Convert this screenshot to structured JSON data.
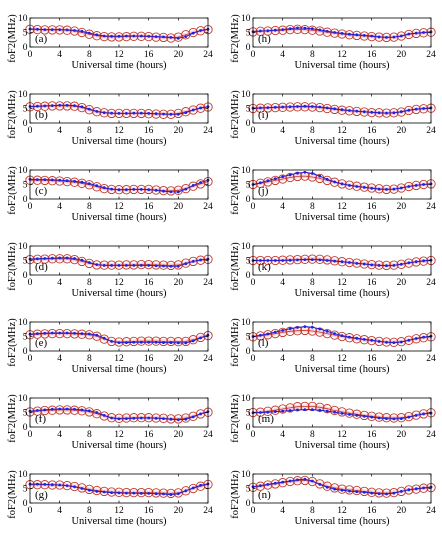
{
  "chart_data": {
    "type": "line",
    "xlabel": "Universal time (hours)",
    "ylabel": "foF2(MHz)",
    "xlim": [
      0,
      24
    ],
    "ylim": [
      0,
      10
    ],
    "xticks": [
      0,
      4,
      8,
      12,
      16,
      20,
      24
    ],
    "yticks": [
      0,
      5,
      10
    ],
    "grid": false,
    "colors": {
      "measured": "#2020dd",
      "model_marker": "#c0392b",
      "model_band": "#f7c7d3"
    },
    "x": [
      0,
      1,
      2,
      3,
      4,
      5,
      6,
      7,
      8,
      9,
      10,
      11,
      12,
      13,
      14,
      15,
      16,
      17,
      18,
      19,
      20,
      21,
      22,
      23,
      24
    ],
    "panels": [
      {
        "label": "(a)",
        "measured": [
          6.2,
          6.1,
          6.0,
          6.0,
          6.0,
          5.9,
          5.7,
          5.4,
          4.8,
          4.2,
          3.8,
          3.7,
          3.7,
          3.8,
          3.8,
          3.8,
          3.7,
          3.6,
          3.5,
          3.3,
          3.0,
          3.6,
          4.8,
          5.7,
          6.1
        ],
        "model": [
          6.1,
          6.0,
          5.9,
          5.9,
          5.9,
          5.8,
          5.5,
          5.0,
          4.4,
          3.9,
          3.6,
          3.5,
          3.5,
          3.6,
          3.7,
          3.7,
          3.6,
          3.4,
          3.3,
          3.1,
          3.4,
          4.2,
          5.0,
          5.6,
          6.0
        ]
      },
      {
        "label": "(b)",
        "measured": [
          5.7,
          5.8,
          5.9,
          6.0,
          6.1,
          6.1,
          6.0,
          5.6,
          4.8,
          4.0,
          3.6,
          3.4,
          3.3,
          3.3,
          3.4,
          3.4,
          3.3,
          3.2,
          3.1,
          3.0,
          3.0,
          3.6,
          4.5,
          5.2,
          5.6
        ],
        "model": [
          5.6,
          5.7,
          5.8,
          5.9,
          5.9,
          5.9,
          5.8,
          5.3,
          4.6,
          3.9,
          3.5,
          3.3,
          3.3,
          3.3,
          3.3,
          3.3,
          3.2,
          3.1,
          3.0,
          3.0,
          3.3,
          3.9,
          4.5,
          5.1,
          5.5
        ]
      },
      {
        "label": "(c)",
        "measured": [
          6.8,
          6.7,
          6.7,
          6.6,
          6.5,
          6.3,
          6.1,
          5.8,
          5.3,
          4.6,
          3.9,
          3.4,
          3.2,
          3.2,
          3.3,
          3.3,
          3.2,
          3.0,
          2.7,
          2.5,
          2.4,
          3.4,
          4.7,
          5.7,
          6.5
        ],
        "model": [
          6.5,
          6.5,
          6.4,
          6.3,
          6.2,
          6.0,
          5.8,
          5.4,
          4.9,
          4.2,
          3.6,
          3.3,
          3.2,
          3.2,
          3.3,
          3.3,
          3.3,
          3.1,
          2.9,
          2.8,
          3.0,
          3.6,
          4.4,
          5.2,
          6.0
        ]
      },
      {
        "label": "(d)",
        "measured": [
          5.5,
          5.6,
          5.7,
          5.8,
          5.9,
          5.9,
          5.7,
          5.1,
          4.3,
          3.6,
          3.3,
          3.3,
          3.3,
          3.3,
          3.3,
          3.3,
          3.3,
          3.2,
          3.1,
          3.0,
          3.0,
          3.9,
          4.7,
          5.2,
          5.5
        ],
        "model": [
          5.3,
          5.4,
          5.5,
          5.6,
          5.6,
          5.6,
          5.3,
          4.7,
          4.0,
          3.5,
          3.4,
          3.4,
          3.4,
          3.5,
          3.5,
          3.6,
          3.6,
          3.5,
          3.4,
          3.3,
          3.5,
          4.1,
          4.7,
          5.1,
          5.4
        ]
      },
      {
        "label": "(e)",
        "measured": [
          5.8,
          6.0,
          6.1,
          6.2,
          6.2,
          6.2,
          6.1,
          6.0,
          5.9,
          5.5,
          4.4,
          3.3,
          2.9,
          2.9,
          3.0,
          3.0,
          3.0,
          3.0,
          2.9,
          2.9,
          2.8,
          2.8,
          3.5,
          4.5,
          5.5
        ],
        "model": [
          5.6,
          5.8,
          5.9,
          6.0,
          6.0,
          6.0,
          5.9,
          5.8,
          5.6,
          5.1,
          4.1,
          3.3,
          3.1,
          3.2,
          3.3,
          3.4,
          3.4,
          3.4,
          3.3,
          3.3,
          3.2,
          3.3,
          3.9,
          4.7,
          5.3
        ]
      },
      {
        "label": "(f)",
        "measured": [
          5.4,
          5.7,
          5.9,
          6.1,
          6.2,
          6.2,
          6.1,
          5.9,
          5.6,
          5.0,
          4.0,
          3.1,
          2.8,
          2.9,
          3.0,
          3.1,
          3.1,
          3.0,
          2.9,
          2.7,
          2.5,
          2.7,
          3.5,
          4.5,
          5.3
        ],
        "model": [
          5.2,
          5.5,
          5.7,
          5.8,
          5.9,
          5.9,
          5.8,
          5.6,
          5.2,
          4.6,
          3.8,
          3.2,
          3.0,
          3.1,
          3.2,
          3.2,
          3.2,
          3.1,
          3.0,
          2.8,
          2.8,
          3.1,
          3.7,
          4.5,
          5.1
        ]
      },
      {
        "label": "(g)",
        "measured": [
          6.5,
          6.5,
          6.4,
          6.3,
          6.2,
          6.0,
          5.6,
          5.0,
          4.4,
          4.0,
          3.8,
          3.6,
          3.5,
          3.4,
          3.4,
          3.3,
          3.3,
          3.2,
          3.1,
          2.9,
          3.2,
          4.2,
          5.2,
          6.1,
          6.6
        ],
        "model": [
          6.3,
          6.3,
          6.3,
          6.2,
          6.2,
          6.0,
          5.7,
          5.2,
          4.7,
          4.3,
          4.0,
          3.8,
          3.7,
          3.6,
          3.6,
          3.6,
          3.6,
          3.5,
          3.4,
          3.3,
          3.5,
          4.2,
          5.0,
          5.8,
          6.4
        ]
      },
      {
        "label": "(h)",
        "measured": [
          5.3,
          5.5,
          5.6,
          5.8,
          6.0,
          6.3,
          6.6,
          6.5,
          6.3,
          5.9,
          5.4,
          5.0,
          4.7,
          4.4,
          4.2,
          4.0,
          3.8,
          3.5,
          3.3,
          3.4,
          3.8,
          4.5,
          4.8,
          5.0,
          5.2
        ],
        "model": [
          5.2,
          5.4,
          5.5,
          5.7,
          5.8,
          6.0,
          6.1,
          6.0,
          5.8,
          5.5,
          5.1,
          4.8,
          4.5,
          4.2,
          4.0,
          3.8,
          3.6,
          3.4,
          3.3,
          3.4,
          3.8,
          4.3,
          4.7,
          4.9,
          5.1
        ]
      },
      {
        "label": "(i)",
        "measured": [
          5.1,
          5.2,
          5.3,
          5.4,
          5.5,
          5.6,
          5.7,
          5.8,
          5.7,
          5.5,
          5.2,
          4.9,
          4.6,
          4.3,
          4.1,
          3.9,
          3.7,
          3.5,
          3.4,
          3.5,
          3.9,
          4.4,
          4.8,
          5.0,
          5.2
        ],
        "model": [
          5.0,
          5.1,
          5.2,
          5.3,
          5.4,
          5.5,
          5.6,
          5.6,
          5.5,
          5.3,
          5.0,
          4.7,
          4.4,
          4.2,
          4.0,
          3.8,
          3.6,
          3.5,
          3.4,
          3.5,
          3.8,
          4.3,
          4.7,
          4.9,
          5.1
        ]
      },
      {
        "label": "(j)",
        "measured": [
          5.0,
          5.6,
          6.3,
          7.0,
          7.7,
          8.3,
          8.9,
          9.2,
          8.8,
          7.9,
          6.8,
          5.9,
          5.2,
          4.7,
          4.3,
          4.0,
          3.7,
          3.4,
          3.3,
          3.4,
          3.8,
          4.3,
          4.7,
          5.0,
          5.2
        ],
        "model": [
          5.0,
          5.4,
          5.9,
          6.4,
          6.9,
          7.4,
          7.8,
          7.9,
          7.6,
          7.1,
          6.4,
          5.8,
          5.2,
          4.8,
          4.4,
          4.1,
          3.8,
          3.5,
          3.3,
          3.4,
          3.8,
          4.3,
          4.7,
          5.0,
          5.2
        ]
      },
      {
        "label": "(k)",
        "measured": [
          5.0,
          5.0,
          5.0,
          5.0,
          5.0,
          5.1,
          5.2,
          5.3,
          5.3,
          5.2,
          5.0,
          4.8,
          4.6,
          4.3,
          4.0,
          3.8,
          3.5,
          3.3,
          3.2,
          3.3,
          3.7,
          4.2,
          4.6,
          4.9,
          5.1
        ],
        "model": [
          5.0,
          5.0,
          5.0,
          5.0,
          5.1,
          5.2,
          5.3,
          5.4,
          5.5,
          5.4,
          5.2,
          4.9,
          4.6,
          4.3,
          4.1,
          3.8,
          3.6,
          3.4,
          3.3,
          3.4,
          3.7,
          4.1,
          4.5,
          4.8,
          5.0
        ]
      },
      {
        "label": "(l)",
        "measured": [
          5.0,
          5.4,
          5.9,
          6.5,
          7.1,
          7.7,
          8.1,
          8.4,
          8.2,
          7.6,
          6.8,
          6.0,
          5.3,
          4.8,
          4.4,
          4.0,
          3.7,
          3.3,
          3.0,
          2.9,
          3.1,
          3.7,
          4.3,
          4.8,
          5.1
        ],
        "model": [
          4.9,
          5.2,
          5.6,
          6.0,
          6.4,
          6.8,
          7.0,
          7.1,
          6.9,
          6.5,
          6.0,
          5.5,
          5.0,
          4.6,
          4.2,
          3.9,
          3.6,
          3.3,
          3.1,
          3.0,
          3.2,
          3.7,
          4.2,
          4.6,
          4.9
        ]
      },
      {
        "label": "(m)",
        "measured": [
          4.9,
          5.0,
          5.1,
          5.3,
          5.5,
          5.7,
          5.9,
          6.0,
          6.0,
          5.8,
          5.5,
          5.1,
          4.7,
          4.3,
          4.0,
          3.7,
          3.4,
          3.1,
          2.9,
          2.8,
          2.9,
          3.4,
          4.0,
          4.5,
          4.8
        ],
        "model": [
          5.0,
          5.1,
          5.4,
          5.8,
          6.2,
          6.6,
          7.0,
          7.1,
          7.1,
          6.8,
          6.3,
          5.7,
          5.2,
          4.8,
          4.4,
          4.0,
          3.7,
          3.4,
          3.2,
          3.1,
          3.2,
          3.6,
          4.1,
          4.5,
          4.9
        ]
      },
      {
        "label": "(n)",
        "measured": [
          5.6,
          6.0,
          6.4,
          6.8,
          7.2,
          7.6,
          8.0,
          8.2,
          7.6,
          6.4,
          5.4,
          4.8,
          4.4,
          4.1,
          3.9,
          3.7,
          3.4,
          3.2,
          3.1,
          3.4,
          4.0,
          4.6,
          4.9,
          5.2,
          5.5
        ],
        "model": [
          5.4,
          5.8,
          6.2,
          6.6,
          7.0,
          7.4,
          7.7,
          7.8,
          7.4,
          6.6,
          5.8,
          5.2,
          4.8,
          4.5,
          4.3,
          4.0,
          3.7,
          3.5,
          3.4,
          3.6,
          4.0,
          4.5,
          4.8,
          5.1,
          5.3
        ]
      }
    ]
  }
}
